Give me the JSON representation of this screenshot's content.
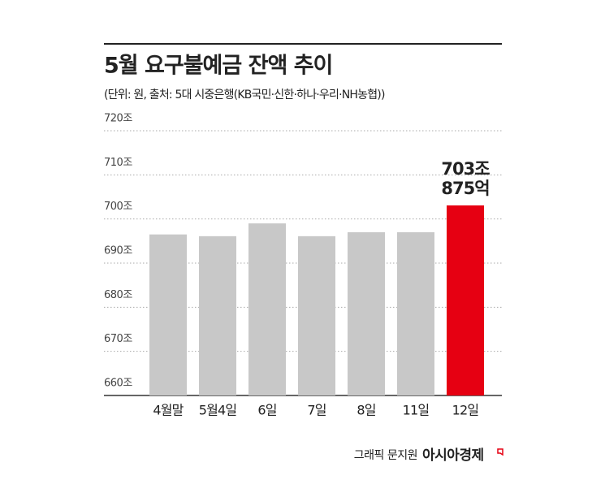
{
  "chart_data": {
    "type": "bar",
    "title": "5월 요구불예금 잔액 추이",
    "subtitle": "(단위: 원, 출처: 5대 시중은행(KB국민·신한·하나·우리·NH농협))",
    "categories": [
      "4월말",
      "5월4일",
      "6일",
      "7일",
      "8일",
      "11일",
      "12일"
    ],
    "values": [
      696.5,
      696.1,
      699.0,
      696.1,
      697.0,
      697.0,
      703.0875
    ],
    "value_labels": [
      null,
      null,
      null,
      null,
      null,
      null,
      "703조 875억"
    ],
    "colors": [
      "#c8c8c8",
      "#c8c8c8",
      "#c8c8c8",
      "#c8c8c8",
      "#c8c8c8",
      "#c8c8c8",
      "#e60012"
    ],
    "ylim": [
      660,
      720
    ],
    "yticks": [
      {
        "value": 660,
        "label": "660조"
      },
      {
        "value": 670,
        "label": "670조"
      },
      {
        "value": 680,
        "label": "680조"
      },
      {
        "value": 690,
        "label": "690조"
      },
      {
        "value": 700,
        "label": "700조"
      },
      {
        "value": 710,
        "label": "710조"
      },
      {
        "value": 720,
        "label": "720조"
      }
    ],
    "grid": true,
    "credit": "그래픽 문지원",
    "brand": "아시아경제"
  }
}
